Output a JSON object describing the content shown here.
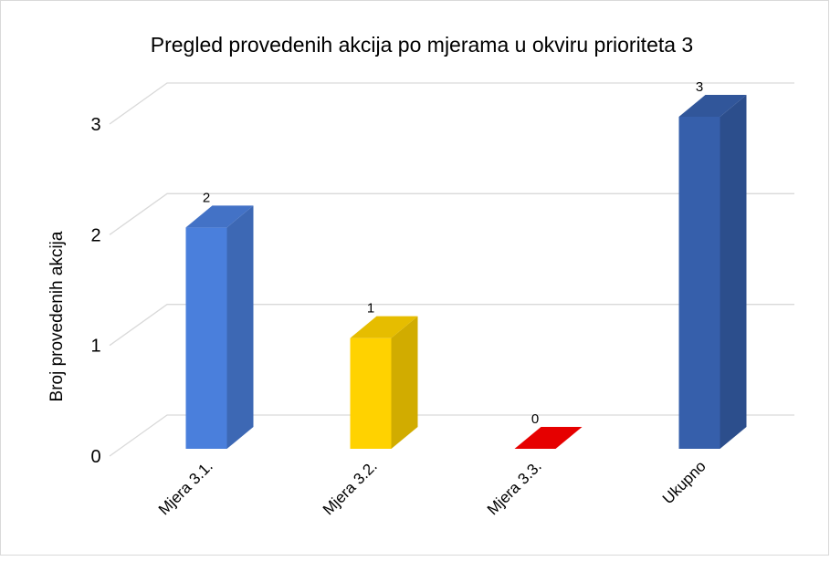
{
  "chart_data": {
    "type": "bar3d",
    "title": "Pregled provedenih akcija po mjerama u okviru prioriteta 3",
    "y_label": "Broj provedenih akcija",
    "categories": [
      "Mjera 3.1.",
      "Mjera 3.2.",
      "Mjera 3.3.",
      "Ukupno"
    ],
    "values": [
      2,
      1,
      0,
      3
    ],
    "colors": [
      "#4a7fdc",
      "#ffd200",
      "#ff0000",
      "#365fab"
    ],
    "ylim": [
      0,
      3
    ],
    "yticks": [
      0,
      1,
      2,
      3
    ],
    "grid": true
  }
}
